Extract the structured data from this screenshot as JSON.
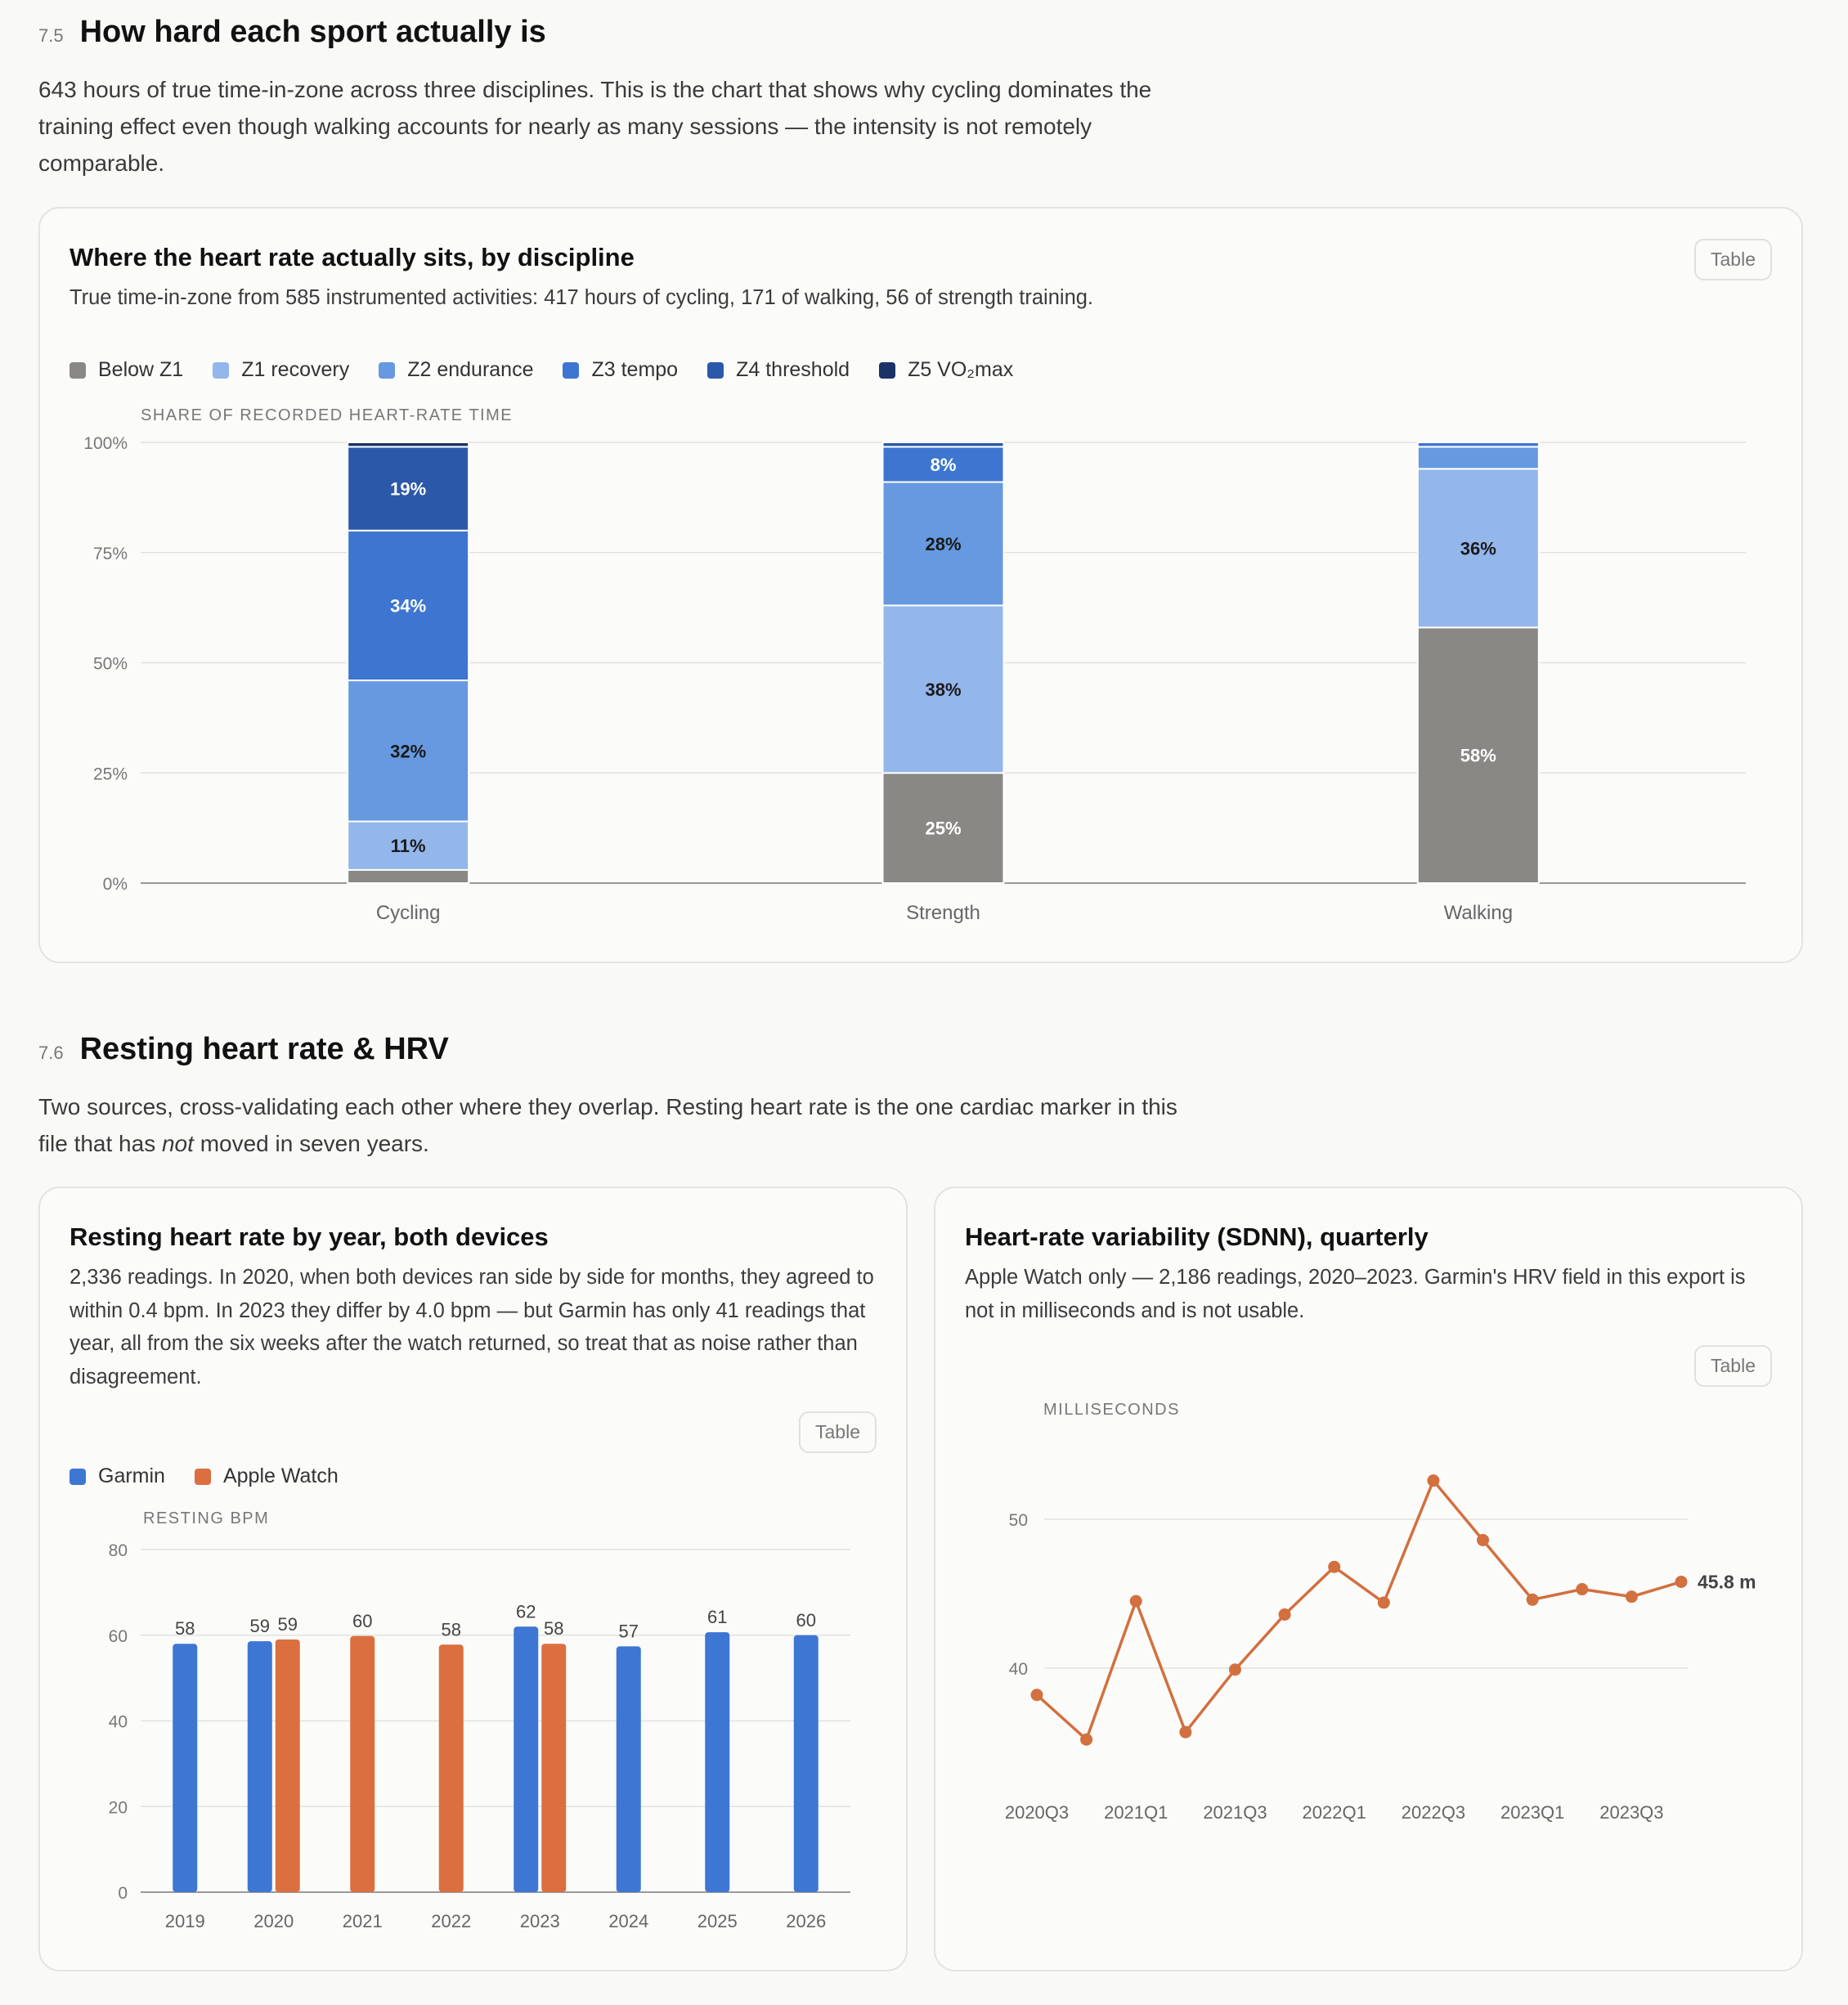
{
  "section_75": {
    "number": "7.5",
    "title": "How hard each sport actually is",
    "intro": "643 hours of true time-in-zone across three disciplines. This is the chart that shows why cycling dominates the training effect even though walking accounts for nearly as many sessions — the intensity is not remotely comparable."
  },
  "zone_card": {
    "title": "Where the heart rate actually sits, by discipline",
    "subtitle": "True time-in-zone from 585 instrumented activities: 417 hours of cycling, 171 of walking, 56 of strength training.",
    "table_button": "Table",
    "legend": [
      {
        "label": "Below Z1",
        "color": "#8a8884"
      },
      {
        "label": "Z1 recovery",
        "color": "#93b6eb"
      },
      {
        "label": "Z2 endurance",
        "color": "#6699e0"
      },
      {
        "label": "Z3 tempo",
        "color": "#3d75d0"
      },
      {
        "label": "Z4 threshold",
        "color": "#2b58a8"
      },
      {
        "label": "Z5 VO₂max",
        "color": "#1a3366"
      }
    ]
  },
  "section_76": {
    "number": "7.6",
    "title": "Resting heart rate & HRV",
    "intro_before": "Two sources, cross-validating each other where they overlap. Resting heart rate is the one cardiac marker in this file that has ",
    "intro_em": "not",
    "intro_after": " moved in seven years."
  },
  "rhr_card": {
    "title": "Resting heart rate by year, both devices",
    "subtitle": "2,336 readings. In 2020, when both devices ran side by side for months, they agreed to within 0.4 bpm. In 2023 they differ by 4.0 bpm — but Garmin has only 41 readings that year, all from the six weeks after the watch returned, so treat that as noise rather than disagreement.",
    "table_button": "Table",
    "legend": [
      {
        "label": "Garmin",
        "color": "#3e76d3"
      },
      {
        "label": "Apple Watch",
        "color": "#dc6f3f"
      }
    ]
  },
  "hrv_card": {
    "title": "Heart-rate variability (SDNN), quarterly",
    "subtitle": "Apple Watch only — 2,186 readings, 2020–2023. Garmin's HRV field in this export is not in milliseconds and is not usable.",
    "table_button": "Table"
  },
  "chart_data": [
    {
      "type": "bar",
      "stacked": true,
      "ylabel": "SHARE OF RECORDED HEART-RATE TIME",
      "ylim": [
        0,
        100
      ],
      "yticks": [
        "0%",
        "25%",
        "50%",
        "75%",
        "100%"
      ],
      "categories": [
        "Cycling",
        "Strength",
        "Walking"
      ],
      "series": [
        {
          "name": "Below Z1",
          "color": "#8a8884",
          "values": [
            3,
            25,
            58
          ],
          "labels": [
            "",
            "25%",
            "58%"
          ],
          "label_color": "#ffffff"
        },
        {
          "name": "Z1 recovery",
          "color": "#93b6eb",
          "values": [
            11,
            38,
            36
          ],
          "labels": [
            "11%",
            "38%",
            "36%"
          ],
          "label_color": "#1a1a1a"
        },
        {
          "name": "Z2 endurance",
          "color": "#6699e0",
          "values": [
            32,
            28,
            5
          ],
          "labels": [
            "32%",
            "28%",
            ""
          ],
          "label_color": "#1a1a1a"
        },
        {
          "name": "Z3 tempo",
          "color": "#3d75d0",
          "values": [
            34,
            8,
            1
          ],
          "labels": [
            "34%",
            "8%",
            ""
          ],
          "label_color": "#ffffff"
        },
        {
          "name": "Z4 threshold",
          "color": "#2b58a8",
          "values": [
            19,
            1,
            0
          ],
          "labels": [
            "19%",
            "",
            ""
          ],
          "label_color": "#ffffff"
        },
        {
          "name": "Z5 VO₂max",
          "color": "#1a3366",
          "values": [
            1,
            0,
            0
          ],
          "labels": [
            "",
            "",
            ""
          ],
          "label_color": "#ffffff"
        }
      ]
    },
    {
      "type": "bar",
      "ylabel": "RESTING BPM",
      "ylim": [
        0,
        80
      ],
      "yticks": [
        "0",
        "20",
        "40",
        "60",
        "80"
      ],
      "categories": [
        "2019",
        "2020",
        "2021",
        "2022",
        "2023",
        "2024",
        "2025",
        "2026"
      ],
      "series": [
        {
          "name": "Garmin",
          "color": "#3e76d3",
          "values": [
            58,
            58.6,
            null,
            null,
            62,
            57.4,
            60.7,
            60
          ],
          "labels": [
            "58",
            "59",
            "",
            "",
            "62",
            "57",
            "61",
            "60"
          ]
        },
        {
          "name": "Apple Watch",
          "color": "#dc6f3f",
          "values": [
            null,
            59,
            59.8,
            57.8,
            58,
            null,
            null,
            null
          ],
          "labels": [
            "",
            "59",
            "60",
            "58",
            "58",
            "",
            "",
            ""
          ]
        }
      ]
    },
    {
      "type": "line",
      "ylabel": "MILLISECONDS",
      "yticks": [
        "40",
        "50"
      ],
      "x": [
        "2020Q3",
        "2020Q4",
        "2021Q1",
        "2021Q2",
        "2021Q3",
        "2021Q4",
        "2022Q1",
        "2022Q2",
        "2022Q3",
        "2022Q4",
        "2023Q1",
        "2023Q2",
        "2023Q3",
        "2023Q4"
      ],
      "xticks": [
        "2020Q3",
        "2021Q1",
        "2021Q3",
        "2022Q1",
        "2022Q3",
        "2023Q1",
        "2023Q3"
      ],
      "series": [
        {
          "name": "",
          "color": "#d2703f",
          "values": [
            38.2,
            35.2,
            44.5,
            35.7,
            39.9,
            43.6,
            46.8,
            44.4,
            52.6,
            48.6,
            44.6,
            45.3,
            44.8,
            45.8
          ]
        }
      ],
      "end_label": "45.8 m"
    }
  ]
}
